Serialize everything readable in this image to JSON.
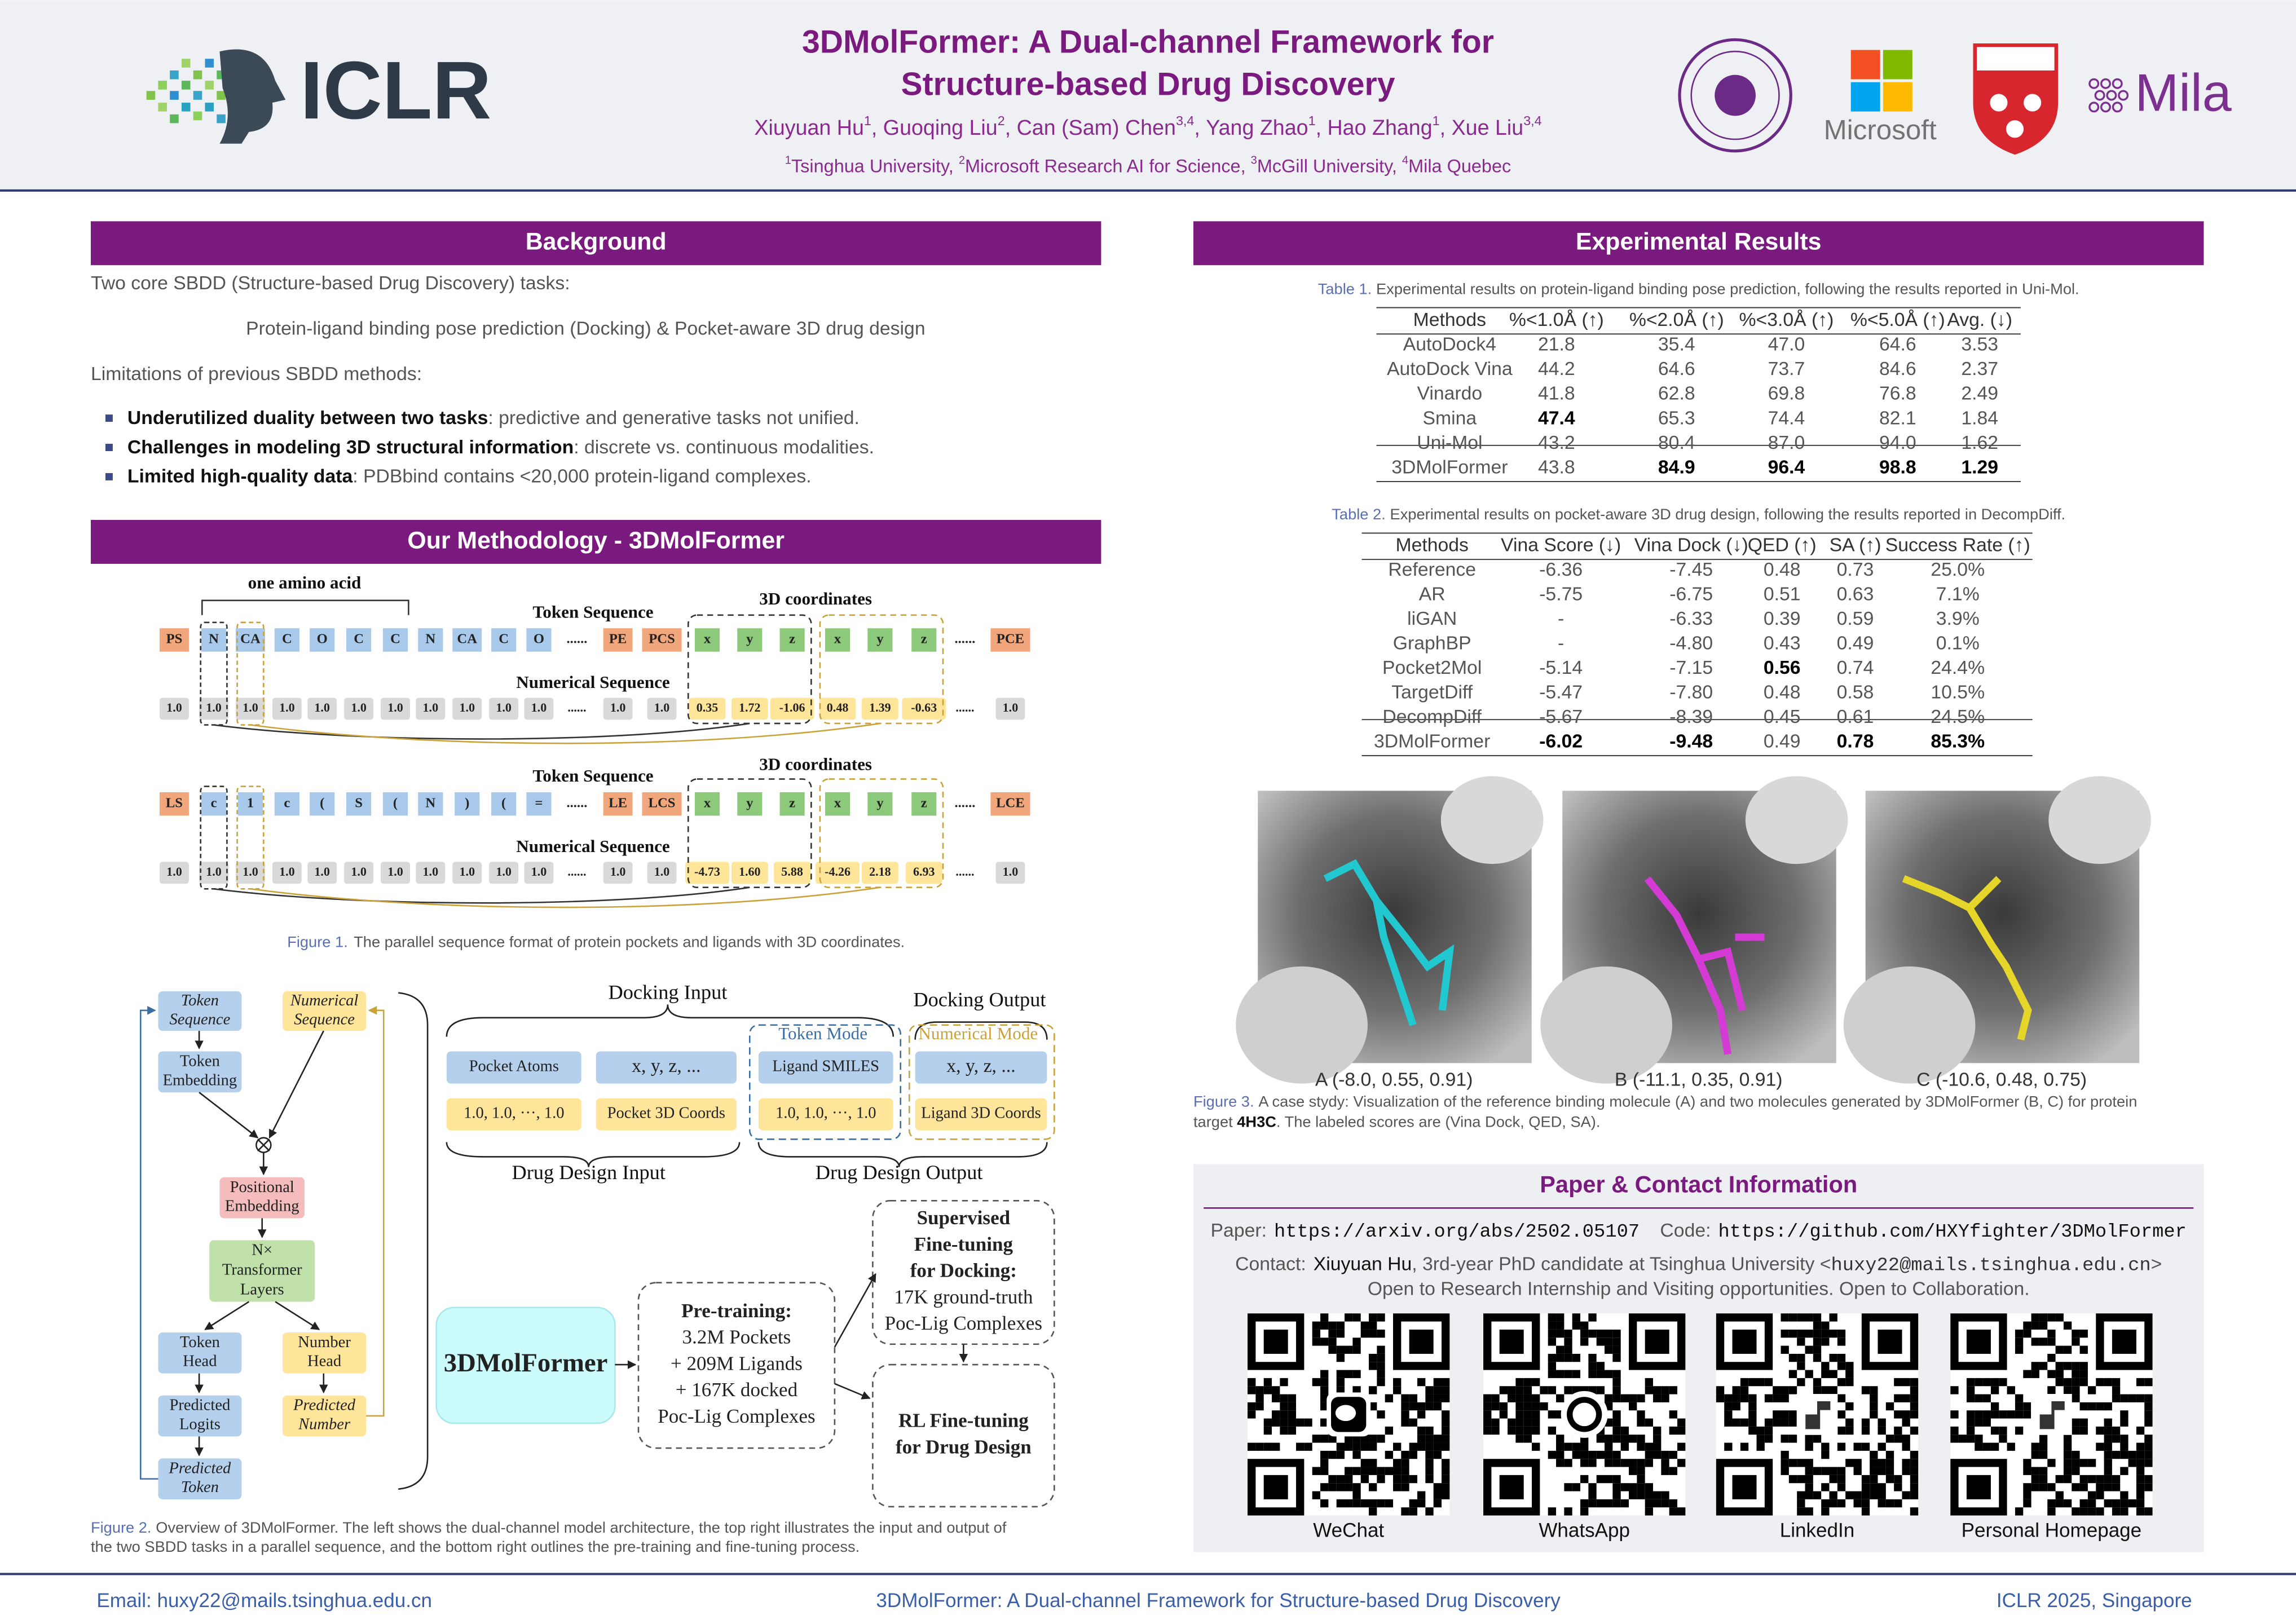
{
  "header": {
    "title": [
      "3DMolFormer: A Dual-channel Framework for",
      "Structure-based Drug Discovery"
    ],
    "authors": [
      {
        "name": "Xiuyuan Hu",
        "sup": "1",
        "sep": ", "
      },
      {
        "name": "Guoqing Liu",
        "sup": "2",
        "sep": ", "
      },
      {
        "name": "Can (Sam) Chen",
        "sup": "3,4",
        "sep": ", "
      },
      {
        "name": "Yang Zhao",
        "sup": "1",
        "sep": ", "
      },
      {
        "name": "Hao Zhang",
        "sup": "1",
        "sep": ", "
      },
      {
        "name": "Xue Liu",
        "sup": "3,4"
      }
    ],
    "affiliations": [
      {
        "sup": "1",
        "name": "Tsinghua University, "
      },
      {
        "sup": "2",
        "name": "Microsoft Research AI for Science, "
      },
      {
        "sup": "3",
        "name": "McGill University, "
      },
      {
        "sup": "4",
        "name": "Mila Quebec"
      }
    ],
    "logos": {
      "iclr": "ICLR",
      "microsoft": "Microsoft",
      "mila": "Mila"
    }
  },
  "background": {
    "title": "Background",
    "intro": "Two core SBDD (Structure-based Drug Discovery) tasks:",
    "tasks": "Protein-ligand binding pose prediction (Docking) & Pocket-aware 3D drug design",
    "limitations": "Limitations of previous SBDD methods:",
    "bullets": [
      {
        "bold": "Underutilized duality between two tasks",
        "text": ": predictive and generative tasks not unified."
      },
      {
        "bold": "Challenges in modeling 3D structural information",
        "text": ": discrete vs. continuous modalities."
      },
      {
        "bold": "Limited high-quality data",
        "text": ": PDBbind contains <20,000 protein-ligand complexes."
      }
    ]
  },
  "methodology": {
    "title": "Our Methodology - 3DMolFormer",
    "figure1": {
      "labels": {
        "amino": "one amino acid",
        "token_seq": "Token Sequence",
        "coords": "3D coordinates",
        "num_seq": "Numerical Sequence"
      },
      "protein_tokens": [
        "PS",
        "N",
        "CA",
        "C",
        "O",
        "C",
        "C",
        "N",
        "CA",
        "C",
        "O",
        "......",
        "PE",
        "PCS",
        "x",
        "y",
        "z",
        "x",
        "y",
        "z",
        "......",
        "PCE"
      ],
      "protein_numbers": [
        "1.0",
        "1.0",
        "1.0",
        "1.0",
        "1.0",
        "1.0",
        "1.0",
        "1.0",
        "1.0",
        "1.0",
        "1.0",
        "......",
        "1.0",
        "1.0",
        "0.35",
        "1.72",
        "-1.06",
        "0.48",
        "1.39",
        "-0.63",
        "......",
        "1.0"
      ],
      "ligand_tokens": [
        "LS",
        "c",
        "1",
        "c",
        "(",
        "S",
        "(",
        "N",
        ")",
        "(",
        "=",
        "......",
        "LE",
        "LCS",
        "x",
        "y",
        "z",
        "x",
        "y",
        "z",
        "......",
        "LCE"
      ],
      "ligand_numbers": [
        "1.0",
        "1.0",
        "1.0",
        "1.0",
        "1.0",
        "1.0",
        "1.0",
        "1.0",
        "1.0",
        "1.0",
        "1.0",
        "......",
        "1.0",
        "1.0",
        "-4.73",
        "1.60",
        "5.88",
        "-4.26",
        "2.18",
        "6.93",
        "......",
        "1.0"
      ],
      "label": "Figure 1.",
      "caption": "The parallel sequence format of protein pockets and ligands with 3D coordinates."
    },
    "figure2": {
      "arch": {
        "token_seq": [
          "Token",
          "Sequence"
        ],
        "num_seq": [
          "Numerical",
          "Sequence"
        ],
        "token_emb": [
          "Token",
          "Embedding"
        ],
        "pos_emb": [
          "Positional",
          "Embedding"
        ],
        "transformer": [
          "N×",
          "Transformer",
          "Layers"
        ],
        "token_head": [
          "Token",
          "Head"
        ],
        "number_head": [
          "Number",
          "Head"
        ],
        "pred_logits": [
          "Predicted",
          "Logits"
        ],
        "pred_number": [
          "Predicted",
          "Number"
        ],
        "pred_token": [
          "Predicted",
          "Token"
        ]
      },
      "io": {
        "docking_input": "Docking Input",
        "docking_output": "Docking Output",
        "token_mode": "Token Mode",
        "numerical_mode": "Numerical Mode",
        "pocket_atoms": "Pocket Atoms",
        "xyz1": "x, y, z, ...",
        "ligand_smiles": "Ligand SMILES",
        "xyz2": "x, y, z, ...",
        "ones1": "1.0, 1.0, ···, 1.0",
        "pocket_coords": "Pocket 3D Coords",
        "ones2": "1.0, 1.0, ···, 1.0",
        "ligand_coords": "Ligand 3D Coords",
        "design_input": "Drug Design Input",
        "design_output": "Drug Design Output"
      },
      "training": {
        "model": "3DMolFormer",
        "pretraining": [
          "Pre-training:",
          "3.2M Pockets",
          "+ 209M Ligands",
          "+ 167K docked",
          "Poc-Lig Complexes"
        ],
        "supervised": [
          "Supervised",
          "Fine-tuning",
          "for Docking:",
          "17K ground-truth",
          "Poc-Lig Complexes"
        ],
        "rl": [
          "RL Fine-tuning",
          "for Drug Design"
        ]
      },
      "label": "Figure 2.",
      "caption": [
        "Overview of 3DMolFormer.  The left shows the dual-channel model architecture, the top right illustrates the input and output of",
        "the two SBDD tasks in a parallel sequence, and the bottom right outlines the pre-training and fine-tuning process."
      ]
    }
  },
  "results": {
    "title": "Experimental Results",
    "table1": {
      "label": "Table 1.",
      "caption": "Experimental results on protein-ligand binding pose prediction, following the results reported in Uni-Mol.",
      "columns": [
        "Methods",
        "%<1.0Å (↑)",
        "%<2.0Å (↑)",
        "%<3.0Å (↑)",
        "%<5.0Å (↑)",
        "Avg. (↓)"
      ],
      "rows": [
        [
          "AutoDock4",
          "21.8",
          "35.4",
          "47.0",
          "64.6",
          "3.53"
        ],
        [
          "AutoDock Vina",
          "44.2",
          "64.6",
          "73.7",
          "84.6",
          "2.37"
        ],
        [
          "Vinardo",
          "41.8",
          "62.8",
          "69.8",
          "76.8",
          "2.49"
        ],
        [
          "Smina",
          "47.4",
          "65.3",
          "74.4",
          "82.1",
          "1.84"
        ],
        [
          "Uni-Mol",
          "43.2",
          "80.4",
          "87.0",
          "94.0",
          "1.62"
        ],
        [
          "3DMolFormer",
          "43.8",
          "84.9",
          "96.4",
          "98.8",
          "1.29"
        ]
      ],
      "bold": [
        [
          3,
          1
        ],
        [
          5,
          2
        ],
        [
          5,
          3
        ],
        [
          5,
          4
        ],
        [
          5,
          5
        ]
      ]
    },
    "table2": {
      "label": "Table 2.",
      "caption": "Experimental results on pocket-aware 3D drug design, following the results reported in DecompDiff.",
      "columns": [
        "Methods",
        "Vina Score (↓)",
        "Vina Dock (↓)",
        "QED (↑)",
        "SA (↑)",
        "Success Rate (↑)"
      ],
      "rows": [
        [
          "Reference",
          "-6.36",
          "-7.45",
          "0.48",
          "0.73",
          "25.0%"
        ],
        [
          "AR",
          "-5.75",
          "-6.75",
          "0.51",
          "0.63",
          "7.1%"
        ],
        [
          "liGAN",
          "-",
          "-6.33",
          "0.39",
          "0.59",
          "3.9%"
        ],
        [
          "GraphBP",
          "-",
          "-4.80",
          "0.43",
          "0.49",
          "0.1%"
        ],
        [
          "Pocket2Mol",
          "-5.14",
          "-7.15",
          "0.56",
          "0.74",
          "24.4%"
        ],
        [
          "TargetDiff",
          "-5.47",
          "-7.80",
          "0.48",
          "0.58",
          "10.5%"
        ],
        [
          "DecompDiff",
          "-5.67",
          "-8.39",
          "0.45",
          "0.61",
          "24.5%"
        ],
        [
          "3DMolFormer",
          "-6.02",
          "-9.48",
          "0.49",
          "0.78",
          "85.3%"
        ]
      ],
      "bold": [
        [
          4,
          3
        ],
        [
          7,
          1
        ],
        [
          7,
          2
        ],
        [
          7,
          4
        ],
        [
          7,
          5
        ]
      ]
    },
    "figure3": {
      "panels": [
        "A (-8.0, 0.55, 0.91)",
        "B (-11.1, 0.35, 0.91)",
        "C (-10.6, 0.48, 0.75)"
      ],
      "label": "Figure 3.",
      "caption_line1": "A case stydy: Visualization of the reference binding molecule (A) and two molecules generated by 3DMolFormer (B, C) for protein",
      "caption_pre": "target ",
      "caption_bold": "4H3C",
      "caption_post": ". The labeled scores are (Vina Dock, QED, SA)."
    }
  },
  "contact": {
    "title": "Paper & Contact Information",
    "paper_label": "Paper:",
    "paper_url": "https://arxiv.org/abs/2502.05107",
    "code_label": "Code:",
    "code_url": "https://github.com/HXYfighter/3DMolFormer",
    "contact_label": "Contact:",
    "contact_name": "Xiuyuan Hu",
    "contact_role": ", 3rd-year PhD candidate at Tsinghua University <",
    "contact_email": "huxy22@mails.tsinghua.edu.cn",
    "contact_close": ">",
    "open": "Open to Research Internship and Visiting opportunities. Open to Collaboration.",
    "qr_labels": [
      "WeChat",
      "WhatsApp",
      "LinkedIn",
      "Personal Homepage"
    ]
  },
  "footer": {
    "email": "Email: huxy22@mails.tsinghua.edu.cn",
    "title": "3DMolFormer: A Dual-channel Framework for Structure-based Drug Discovery",
    "venue": "ICLR 2025, Singapore"
  }
}
